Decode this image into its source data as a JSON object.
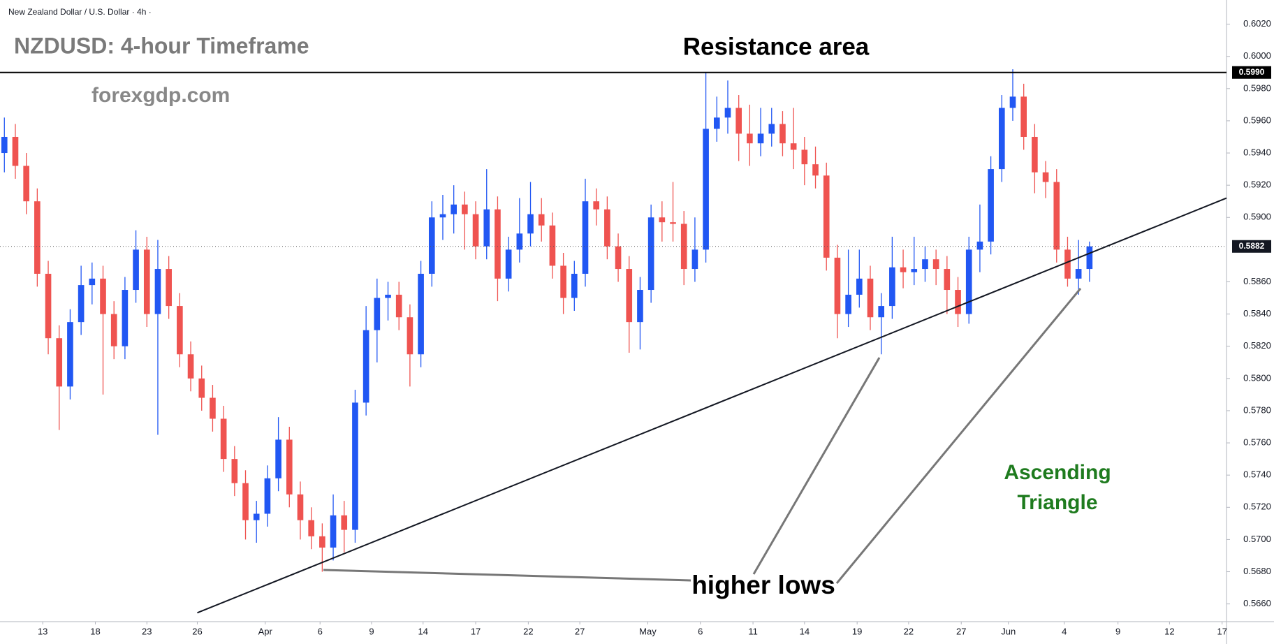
{
  "chart_data": {
    "type": "candlestick",
    "symbol_label": "New Zealand Dollar / U.S. Dollar · 4h ·",
    "title": "NZDUSD: 4-hour Timeframe",
    "subtitle": "forexgdp.com",
    "up_color": "#2157f3",
    "down_color": "#ef5350",
    "open": [
      0.594,
      0.595,
      0.5932,
      0.591,
      0.5865,
      0.5825,
      0.5795,
      0.5835,
      0.5858,
      0.5862,
      0.584,
      0.582,
      0.5855,
      0.588,
      0.584,
      0.5868,
      0.5845,
      0.5815,
      0.58,
      0.5788,
      0.5775,
      0.575,
      0.5735,
      0.5712,
      0.5716,
      0.5738,
      0.5762,
      0.5728,
      0.5712,
      0.5702,
      0.5695,
      0.5715,
      0.5706,
      0.5785,
      0.583,
      0.585,
      0.5852,
      0.5838,
      0.5815,
      0.5865,
      0.59,
      0.5902,
      0.5908,
      0.5902,
      0.5882,
      0.5905,
      0.5862,
      0.588,
      0.589,
      0.5902,
      0.5895,
      0.587,
      0.585,
      0.5865,
      0.591,
      0.5905,
      0.5882,
      0.5868,
      0.5835,
      0.5855,
      0.59,
      0.5897,
      0.5896,
      0.5868,
      0.588,
      0.5955,
      0.5962,
      0.5968,
      0.5952,
      0.5946,
      0.5952,
      0.5958,
      0.5946,
      0.5942,
      0.5933,
      0.5926,
      0.5875,
      0.584,
      0.5852,
      0.5862,
      0.5838,
      0.5845,
      0.5869,
      0.5866,
      0.5868,
      0.5874,
      0.5868,
      0.5855,
      0.584,
      0.588,
      0.5885,
      0.593,
      0.5968,
      0.5975,
      0.595,
      0.5928,
      0.5922,
      0.588,
      0.5862,
      0.5868
    ],
    "high": [
      0.5962,
      0.5958,
      0.594,
      0.5918,
      0.5873,
      0.5833,
      0.5843,
      0.587,
      0.5872,
      0.587,
      0.5848,
      0.5863,
      0.5892,
      0.5888,
      0.5886,
      0.5876,
      0.5853,
      0.5823,
      0.5808,
      0.5796,
      0.5783,
      0.5758,
      0.5743,
      0.5724,
      0.5746,
      0.5776,
      0.577,
      0.5736,
      0.572,
      0.571,
      0.5728,
      0.5724,
      0.5793,
      0.5845,
      0.5862,
      0.586,
      0.586,
      0.5846,
      0.5873,
      0.591,
      0.5914,
      0.592,
      0.5916,
      0.591,
      0.593,
      0.5913,
      0.5888,
      0.5912,
      0.5922,
      0.5912,
      0.5903,
      0.5878,
      0.5873,
      0.5924,
      0.5918,
      0.5913,
      0.589,
      0.5876,
      0.5863,
      0.5908,
      0.591,
      0.5922,
      0.5904,
      0.59,
      0.599,
      0.5975,
      0.5985,
      0.5976,
      0.597,
      0.5968,
      0.5968,
      0.5966,
      0.5968,
      0.595,
      0.5944,
      0.5934,
      0.5883,
      0.588,
      0.588,
      0.587,
      0.5853,
      0.5888,
      0.588,
      0.5888,
      0.5882,
      0.588,
      0.5876,
      0.5863,
      0.5888,
      0.5908,
      0.5938,
      0.5976,
      0.5992,
      0.5983,
      0.5958,
      0.5935,
      0.593,
      0.5888,
      0.5886,
      0.5885
    ],
    "low": [
      0.5928,
      0.5924,
      0.5902,
      0.5857,
      0.5815,
      0.5768,
      0.5787,
      0.5827,
      0.5846,
      0.579,
      0.5812,
      0.5812,
      0.5847,
      0.5832,
      0.5765,
      0.5837,
      0.5807,
      0.5792,
      0.578,
      0.5767,
      0.5742,
      0.5727,
      0.57,
      0.5698,
      0.5708,
      0.573,
      0.572,
      0.57,
      0.5694,
      0.568,
      0.5687,
      0.5692,
      0.5698,
      0.5777,
      0.581,
      0.5836,
      0.583,
      0.5795,
      0.5807,
      0.5857,
      0.5886,
      0.589,
      0.588,
      0.5874,
      0.5874,
      0.5848,
      0.5854,
      0.5872,
      0.5882,
      0.5885,
      0.5862,
      0.584,
      0.5842,
      0.5857,
      0.5895,
      0.5874,
      0.586,
      0.5816,
      0.5818,
      0.5847,
      0.5885,
      0.5885,
      0.5858,
      0.586,
      0.5872,
      0.5947,
      0.5952,
      0.5935,
      0.5932,
      0.5938,
      0.5944,
      0.5938,
      0.593,
      0.592,
      0.5918,
      0.5867,
      0.5825,
      0.5832,
      0.5844,
      0.583,
      0.5815,
      0.5837,
      0.5856,
      0.5858,
      0.586,
      0.5858,
      0.584,
      0.5832,
      0.5834,
      0.5866,
      0.5877,
      0.5922,
      0.596,
      0.5942,
      0.5915,
      0.5912,
      0.5872,
      0.5857,
      0.5852,
      0.586
    ],
    "close": [
      0.595,
      0.5932,
      0.591,
      0.5865,
      0.5825,
      0.5795,
      0.5835,
      0.5858,
      0.5862,
      0.584,
      0.582,
      0.5855,
      0.588,
      0.584,
      0.5868,
      0.5845,
      0.5815,
      0.58,
      0.5788,
      0.5775,
      0.575,
      0.5735,
      0.5712,
      0.5716,
      0.5738,
      0.5762,
      0.5728,
      0.5712,
      0.5702,
      0.5695,
      0.5715,
      0.5706,
      0.5785,
      0.583,
      0.585,
      0.5852,
      0.5838,
      0.5815,
      0.5865,
      0.59,
      0.5902,
      0.5908,
      0.5902,
      0.5882,
      0.5905,
      0.5862,
      0.588,
      0.589,
      0.5902,
      0.5895,
      0.587,
      0.585,
      0.5865,
      0.591,
      0.5905,
      0.5882,
      0.5868,
      0.5835,
      0.5855,
      0.59,
      0.5897,
      0.5896,
      0.5868,
      0.588,
      0.5955,
      0.5962,
      0.5968,
      0.5952,
      0.5946,
      0.5952,
      0.5958,
      0.5946,
      0.5942,
      0.5933,
      0.5926,
      0.5875,
      0.584,
      0.5852,
      0.5862,
      0.5838,
      0.5845,
      0.5869,
      0.5866,
      0.5868,
      0.5874,
      0.5868,
      0.5855,
      0.584,
      0.588,
      0.5885,
      0.593,
      0.5968,
      0.5975,
      0.595,
      0.5928,
      0.5922,
      0.588,
      0.5862,
      0.5868,
      0.5882
    ],
    "xlim": [
      -0.4,
      111.5
    ],
    "xticks": [
      {
        "value": 3.5,
        "label": "13"
      },
      {
        "value": 8.3,
        "label": "18"
      },
      {
        "value": 13,
        "label": "23"
      },
      {
        "value": 17.6,
        "label": "26"
      },
      {
        "value": 23.8,
        "label": "Apr"
      },
      {
        "value": 28.8,
        "label": "6"
      },
      {
        "value": 33.5,
        "label": "9"
      },
      {
        "value": 38.2,
        "label": "14"
      },
      {
        "value": 43,
        "label": "17"
      },
      {
        "value": 47.8,
        "label": "22"
      },
      {
        "value": 52.5,
        "label": "27"
      },
      {
        "value": 58.7,
        "label": "May"
      },
      {
        "value": 63.5,
        "label": "6"
      },
      {
        "value": 68.3,
        "label": "11"
      },
      {
        "value": 73,
        "label": "14"
      },
      {
        "value": 77.8,
        "label": "19"
      },
      {
        "value": 82.5,
        "label": "22"
      },
      {
        "value": 87.3,
        "label": "27"
      },
      {
        "value": 91.6,
        "label": "Jun"
      },
      {
        "value": 96.7,
        "label": "4"
      },
      {
        "value": 101.6,
        "label": "9"
      },
      {
        "value": 106.3,
        "label": "12"
      },
      {
        "value": 111.1,
        "label": "17"
      }
    ],
    "ylim": [
      0.5649,
      0.6035
    ],
    "yticks": [
      {
        "value": 0.566,
        "label": "0.5660"
      },
      {
        "value": 0.568,
        "label": "0.5680"
      },
      {
        "value": 0.57,
        "label": "0.5700"
      },
      {
        "value": 0.572,
        "label": "0.5720"
      },
      {
        "value": 0.574,
        "label": "0.5740"
      },
      {
        "value": 0.576,
        "label": "0.5760"
      },
      {
        "value": 0.578,
        "label": "0.5780"
      },
      {
        "value": 0.58,
        "label": "0.5800"
      },
      {
        "value": 0.582,
        "label": "0.5820"
      },
      {
        "value": 0.584,
        "label": "0.5840"
      },
      {
        "value": 0.586,
        "label": "0.5860"
      },
      {
        "value": 0.59,
        "label": "0.5900"
      },
      {
        "value": 0.592,
        "label": "0.5920"
      },
      {
        "value": 0.594,
        "label": "0.5940"
      },
      {
        "value": 0.596,
        "label": "0.5960"
      },
      {
        "value": 0.598,
        "label": "0.5980"
      },
      {
        "value": 0.6,
        "label": "0.6000"
      },
      {
        "value": 0.602,
        "label": "0.6020"
      }
    ],
    "resistance": {
      "value": 0.599,
      "label": "0.5990",
      "text": "Resistance area"
    },
    "last_price": {
      "value": 0.5882,
      "label": "0.5882"
    },
    "trendline": {
      "x": [
        17.6,
        111.5
      ],
      "y": [
        0.56545,
        0.5912
      ]
    },
    "annotations": {
      "higher_lows": "higher lows",
      "pattern": [
        "Ascending",
        "Triangle"
      ]
    }
  }
}
